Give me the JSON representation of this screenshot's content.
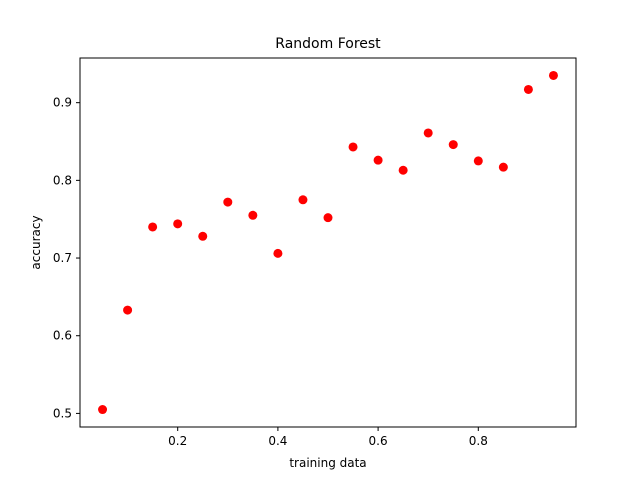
{
  "chart_data": {
    "type": "scatter",
    "title": "Random Forest",
    "xlabel": "training data",
    "ylabel": "accuracy",
    "xlim": [
      0.005,
      0.995
    ],
    "ylim": [
      0.4825,
      0.9575
    ],
    "xticks": [
      0.2,
      0.4,
      0.6,
      0.8
    ],
    "xtick_labels": [
      "0.2",
      "0.4",
      "0.6",
      "0.8"
    ],
    "yticks": [
      0.5,
      0.6,
      0.7,
      0.8,
      0.9
    ],
    "ytick_labels": [
      "0.5",
      "0.6",
      "0.7",
      "0.8",
      "0.9"
    ],
    "grid": false,
    "marker_color": "#ff0000",
    "series": [
      {
        "x": [
          0.05,
          0.1,
          0.15,
          0.2,
          0.25,
          0.3,
          0.35,
          0.4,
          0.45,
          0.5,
          0.55,
          0.6,
          0.65,
          0.7,
          0.75,
          0.8,
          0.85,
          0.9,
          0.95
        ],
        "y": [
          0.505,
          0.633,
          0.74,
          0.744,
          0.728,
          0.772,
          0.755,
          0.706,
          0.775,
          0.752,
          0.843,
          0.826,
          0.813,
          0.861,
          0.846,
          0.825,
          0.817,
          0.917,
          0.935
        ]
      }
    ]
  }
}
